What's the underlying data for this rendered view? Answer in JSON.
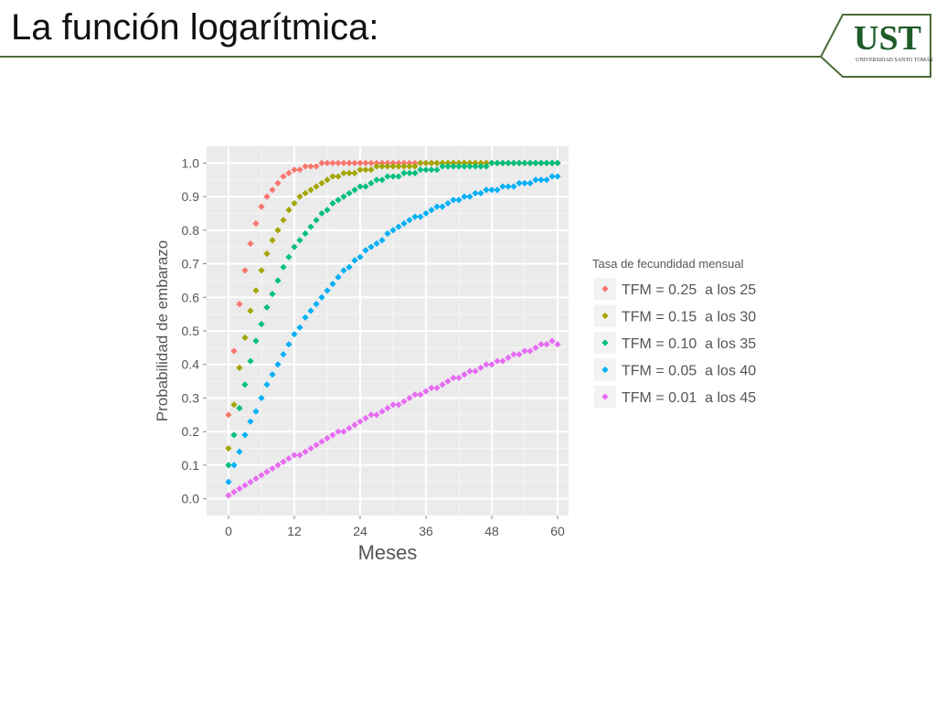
{
  "slide": {
    "title": "La función logarítmica:",
    "logo_text": "UST",
    "logo_subtext": "UNIVERSIDAD SANTO TOMÁS",
    "accent_color": "#4a6b3a"
  },
  "chart_data": {
    "type": "scatter",
    "title": "",
    "xlabel": "Meses",
    "ylabel": "Probabilidad de embarazo",
    "xlim": [
      -4,
      62
    ],
    "ylim": [
      -0.05,
      1.05
    ],
    "x_ticks": [
      0,
      12,
      24,
      36,
      48,
      60
    ],
    "x_tick_labels": [
      "0",
      "12",
      "24",
      "36",
      "48",
      "60"
    ],
    "y_ticks": [
      0.0,
      0.1,
      0.2,
      0.3,
      0.4,
      0.5,
      0.6,
      0.7,
      0.8,
      0.9,
      1.0
    ],
    "y_tick_labels": [
      "0.0",
      "0.1",
      "0.2",
      "0.3",
      "0.4",
      "0.5",
      "0.6",
      "0.7",
      "0.8",
      "0.9",
      "1.0"
    ],
    "grid": true,
    "panel_color": "#ebebeb",
    "legend_title": "Tasa de fecundidad mensual",
    "legend_position": "right",
    "series": [
      {
        "name": "TFM = 0.25  a los 25",
        "color": "#f8766d",
        "x": [
          0,
          1,
          2,
          3,
          4,
          5,
          6,
          7,
          8,
          9,
          10,
          11,
          12,
          13,
          14,
          15,
          16,
          17,
          18,
          19,
          20,
          21,
          22,
          23,
          24,
          25,
          26,
          27,
          28,
          29,
          30,
          31,
          32,
          33,
          34,
          35,
          36,
          37,
          38,
          39,
          40,
          41,
          42,
          43,
          44,
          45,
          46,
          47,
          48,
          49,
          50,
          51,
          52,
          53,
          54,
          55,
          56,
          57,
          58,
          59,
          60
        ],
        "y": [
          0.25,
          0.44,
          0.58,
          0.68,
          0.76,
          0.82,
          0.87,
          0.9,
          0.92,
          0.94,
          0.96,
          0.97,
          0.98,
          0.98,
          0.99,
          0.99,
          0.99,
          1.0,
          1.0,
          1.0,
          1.0,
          1.0,
          1.0,
          1.0,
          1.0,
          1.0,
          1.0,
          1.0,
          1.0,
          1.0,
          1.0,
          1.0,
          1.0,
          1.0,
          1.0,
          1.0,
          1.0,
          1.0,
          1.0,
          1.0,
          1.0,
          1.0,
          1.0,
          1.0,
          1.0,
          1.0,
          1.0,
          1.0,
          1.0,
          1.0,
          1.0,
          1.0,
          1.0,
          1.0,
          1.0,
          1.0,
          1.0,
          1.0,
          1.0,
          1.0,
          1.0
        ]
      },
      {
        "name": "TFM = 0.15  a los 30",
        "color": "#a3a500",
        "x": [
          0,
          1,
          2,
          3,
          4,
          5,
          6,
          7,
          8,
          9,
          10,
          11,
          12,
          13,
          14,
          15,
          16,
          17,
          18,
          19,
          20,
          21,
          22,
          23,
          24,
          25,
          26,
          27,
          28,
          29,
          30,
          31,
          32,
          33,
          34,
          35,
          36,
          37,
          38,
          39,
          40,
          41,
          42,
          43,
          44,
          45,
          46,
          47,
          48,
          49,
          50,
          51,
          52,
          53,
          54,
          55,
          56,
          57,
          58,
          59,
          60
        ],
        "y": [
          0.15,
          0.28,
          0.39,
          0.48,
          0.56,
          0.62,
          0.68,
          0.73,
          0.77,
          0.8,
          0.83,
          0.86,
          0.88,
          0.9,
          0.91,
          0.92,
          0.93,
          0.94,
          0.95,
          0.96,
          0.96,
          0.97,
          0.97,
          0.97,
          0.98,
          0.98,
          0.98,
          0.99,
          0.99,
          0.99,
          0.99,
          0.99,
          0.99,
          0.99,
          0.99,
          1.0,
          1.0,
          1.0,
          1.0,
          1.0,
          1.0,
          1.0,
          1.0,
          1.0,
          1.0,
          1.0,
          1.0,
          1.0,
          1.0,
          1.0,
          1.0,
          1.0,
          1.0,
          1.0,
          1.0,
          1.0,
          1.0,
          1.0,
          1.0,
          1.0,
          1.0
        ]
      },
      {
        "name": "TFM = 0.10  a los 35",
        "color": "#00bf7d",
        "x": [
          0,
          1,
          2,
          3,
          4,
          5,
          6,
          7,
          8,
          9,
          10,
          11,
          12,
          13,
          14,
          15,
          16,
          17,
          18,
          19,
          20,
          21,
          22,
          23,
          24,
          25,
          26,
          27,
          28,
          29,
          30,
          31,
          32,
          33,
          34,
          35,
          36,
          37,
          38,
          39,
          40,
          41,
          42,
          43,
          44,
          45,
          46,
          47,
          48,
          49,
          50,
          51,
          52,
          53,
          54,
          55,
          56,
          57,
          58,
          59,
          60
        ],
        "y": [
          0.1,
          0.19,
          0.27,
          0.34,
          0.41,
          0.47,
          0.52,
          0.57,
          0.61,
          0.65,
          0.69,
          0.72,
          0.75,
          0.77,
          0.79,
          0.81,
          0.83,
          0.85,
          0.86,
          0.88,
          0.89,
          0.9,
          0.91,
          0.92,
          0.93,
          0.93,
          0.94,
          0.95,
          0.95,
          0.96,
          0.96,
          0.96,
          0.97,
          0.97,
          0.97,
          0.98,
          0.98,
          0.98,
          0.98,
          0.99,
          0.99,
          0.99,
          0.99,
          0.99,
          0.99,
          0.99,
          0.99,
          0.99,
          1.0,
          1.0,
          1.0,
          1.0,
          1.0,
          1.0,
          1.0,
          1.0,
          1.0,
          1.0,
          1.0,
          1.0,
          1.0
        ]
      },
      {
        "name": "TFM = 0.05  a los 40",
        "color": "#00b0f6",
        "x": [
          0,
          1,
          2,
          3,
          4,
          5,
          6,
          7,
          8,
          9,
          10,
          11,
          12,
          13,
          14,
          15,
          16,
          17,
          18,
          19,
          20,
          21,
          22,
          23,
          24,
          25,
          26,
          27,
          28,
          29,
          30,
          31,
          32,
          33,
          34,
          35,
          36,
          37,
          38,
          39,
          40,
          41,
          42,
          43,
          44,
          45,
          46,
          47,
          48,
          49,
          50,
          51,
          52,
          53,
          54,
          55,
          56,
          57,
          58,
          59,
          60
        ],
        "y": [
          0.05,
          0.1,
          0.14,
          0.19,
          0.23,
          0.26,
          0.3,
          0.34,
          0.37,
          0.4,
          0.43,
          0.46,
          0.49,
          0.51,
          0.54,
          0.56,
          0.58,
          0.6,
          0.62,
          0.64,
          0.66,
          0.68,
          0.69,
          0.71,
          0.72,
          0.74,
          0.75,
          0.76,
          0.77,
          0.79,
          0.8,
          0.81,
          0.82,
          0.83,
          0.84,
          0.84,
          0.85,
          0.86,
          0.87,
          0.87,
          0.88,
          0.89,
          0.89,
          0.9,
          0.9,
          0.91,
          0.91,
          0.92,
          0.92,
          0.92,
          0.93,
          0.93,
          0.93,
          0.94,
          0.94,
          0.94,
          0.95,
          0.95,
          0.95,
          0.96,
          0.96
        ]
      },
      {
        "name": "TFM = 0.01  a los 45",
        "color": "#e76bf3",
        "x": [
          0,
          1,
          2,
          3,
          4,
          5,
          6,
          7,
          8,
          9,
          10,
          11,
          12,
          13,
          14,
          15,
          16,
          17,
          18,
          19,
          20,
          21,
          22,
          23,
          24,
          25,
          26,
          27,
          28,
          29,
          30,
          31,
          32,
          33,
          34,
          35,
          36,
          37,
          38,
          39,
          40,
          41,
          42,
          43,
          44,
          45,
          46,
          47,
          48,
          49,
          50,
          51,
          52,
          53,
          54,
          55,
          56,
          57,
          58,
          59,
          60
        ],
        "y": [
          0.01,
          0.02,
          0.03,
          0.04,
          0.05,
          0.06,
          0.07,
          0.08,
          0.09,
          0.1,
          0.11,
          0.12,
          0.13,
          0.13,
          0.14,
          0.15,
          0.16,
          0.17,
          0.18,
          0.19,
          0.2,
          0.2,
          0.21,
          0.22,
          0.23,
          0.24,
          0.25,
          0.25,
          0.26,
          0.27,
          0.28,
          0.28,
          0.29,
          0.3,
          0.31,
          0.31,
          0.32,
          0.33,
          0.33,
          0.34,
          0.35,
          0.36,
          0.36,
          0.37,
          0.38,
          0.38,
          0.39,
          0.4,
          0.4,
          0.41,
          0.41,
          0.42,
          0.43,
          0.43,
          0.44,
          0.44,
          0.45,
          0.46,
          0.46,
          0.47,
          0.46
        ]
      }
    ]
  }
}
